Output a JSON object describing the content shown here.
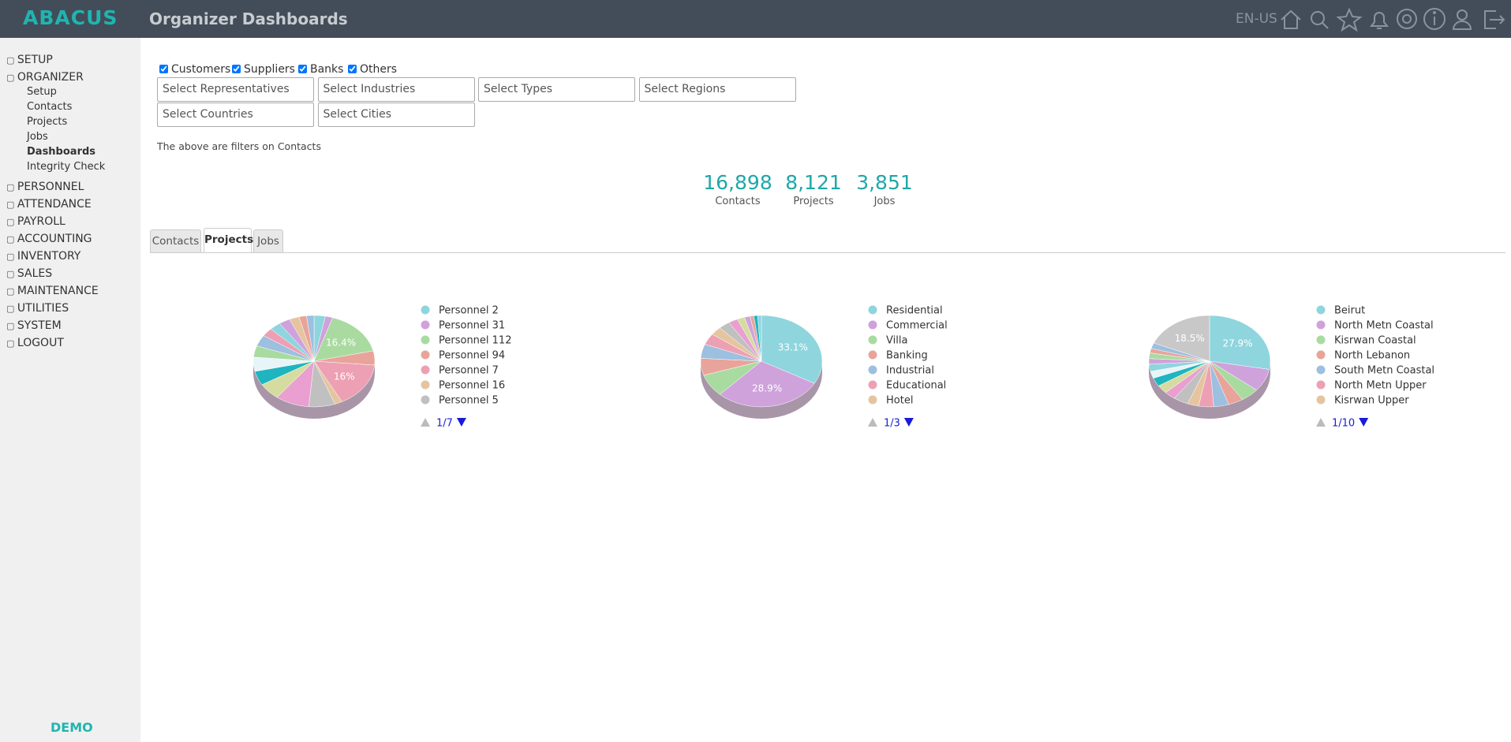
{
  "header": {
    "brand": "ABACUS",
    "title": "Organizer Dashboards",
    "language": "EN-US"
  },
  "sidebar": {
    "sections": [
      {
        "label": "SETUP"
      },
      {
        "label": "ORGANIZER",
        "children": [
          "Setup",
          "Contacts",
          "Projects",
          "Jobs",
          "Dashboards",
          "Integrity Check"
        ]
      },
      {
        "label": "PERSONNEL"
      },
      {
        "label": "ATTENDANCE"
      },
      {
        "label": "PAYROLL"
      },
      {
        "label": "ACCOUNTING"
      },
      {
        "label": "INVENTORY"
      },
      {
        "label": "SALES"
      },
      {
        "label": "MAINTENANCE"
      },
      {
        "label": "UTILITIES"
      },
      {
        "label": "SYSTEM"
      },
      {
        "label": "LOGOUT"
      }
    ],
    "footer": "DEMO"
  },
  "filters": {
    "checkboxes": [
      "Customers",
      "Suppliers",
      "Banks",
      "Others"
    ],
    "selects": [
      "Select Representatives",
      "Select Industries",
      "Select Types",
      "Select Regions",
      "Select Countries",
      "Select Cities"
    ],
    "note": "The above are filters on Contacts"
  },
  "stats": [
    {
      "value": "16,898",
      "label": "Contacts"
    },
    {
      "value": "8,121",
      "label": "Projects"
    },
    {
      "value": "3,851",
      "label": "Jobs"
    }
  ],
  "tabs": [
    "Contacts",
    "Projects",
    "Jobs"
  ],
  "chart_data": [
    {
      "type": "pie",
      "pager": "1/7",
      "categories": [
        "Personnel 2",
        "Personnel 31",
        "Personnel 112",
        "Personnel 94",
        "Personnel 7",
        "Personnel 16",
        "Personnel 5",
        null,
        null,
        null,
        null,
        null,
        null,
        null,
        null,
        null,
        null,
        null,
        null
      ],
      "values": [
        3,
        2,
        16.4,
        5,
        16,
        2,
        7,
        9,
        6,
        5,
        5,
        4,
        4,
        3,
        3,
        3,
        2.6,
        2,
        2
      ],
      "value_labels": [
        null,
        null,
        "16.4%",
        null,
        "16%",
        null,
        null,
        null,
        null,
        null,
        null,
        null,
        null,
        null,
        null,
        null,
        null,
        null,
        null
      ],
      "colors": [
        "#8fd5de",
        "#cfa2dc",
        "#a9dba0",
        "#e8a49a",
        "#eda0b3",
        "#e5c49f",
        "#c0c0c0",
        "#e99fd0",
        "#d6dca0",
        "#1fb5c0",
        "#e8f5f8",
        "#a9dba0",
        "#9dbfe0",
        "#eda0b3",
        "#8fd5de",
        "#cfa2dc",
        "#e5c49f",
        "#e8a49a",
        "#9dbfe0"
      ]
    },
    {
      "type": "pie",
      "pager": "1/3",
      "categories": [
        "Residential",
        "Commercial",
        "Villa",
        "Banking",
        "Industrial",
        "Educational",
        "Hotel",
        null,
        null,
        null,
        null,
        null,
        null,
        null
      ],
      "values": [
        33.1,
        28.9,
        8,
        6,
        5,
        4,
        3,
        3,
        2.5,
        2,
        1.5,
        1,
        1,
        1
      ],
      "value_labels": [
        "33.1%",
        "28.9%",
        null,
        null,
        null,
        null,
        null,
        null,
        null,
        null,
        null,
        null,
        null,
        null
      ],
      "colors": [
        "#8fd5de",
        "#cfa2dc",
        "#a9dba0",
        "#e8a49a",
        "#9dbfe0",
        "#eda0b3",
        "#e5c49f",
        "#c0c0c0",
        "#e99fd0",
        "#d6dca0",
        "#cfa2dc",
        "#e8a49a",
        "#1fb5c0",
        "#8fd5de"
      ]
    },
    {
      "type": "pie",
      "pager": "1/10",
      "categories": [
        "Beirut",
        "North Metn Coastal",
        "Kisrwan Coastal",
        "North Lebanon",
        "South Metn Coastal",
        "North Metn Upper",
        "Kisrwan Upper",
        null,
        null,
        null,
        null,
        null,
        null,
        null,
        null,
        null,
        null,
        null
      ],
      "values": [
        27.9,
        8,
        5,
        4,
        4,
        4,
        3,
        4,
        3,
        3,
        3,
        2.5,
        2.5,
        2,
        2,
        1.6,
        2,
        18.5
      ],
      "value_labels": [
        "27.9%",
        null,
        null,
        null,
        null,
        null,
        null,
        null,
        null,
        null,
        null,
        null,
        null,
        null,
        null,
        null,
        null,
        "18.5%"
      ],
      "colors": [
        "#8fd5de",
        "#cfa2dc",
        "#a9dba0",
        "#e8a49a",
        "#9dbfe0",
        "#eda0b3",
        "#e5c49f",
        "#c0c0c0",
        "#e99fd0",
        "#d6dca0",
        "#1fb5c0",
        "#e8f5f8",
        "#8fd5de",
        "#cfa2dc",
        "#a9dba0",
        "#e8a49a",
        "#9dbfe0",
        "#c8c8c8"
      ]
    }
  ]
}
